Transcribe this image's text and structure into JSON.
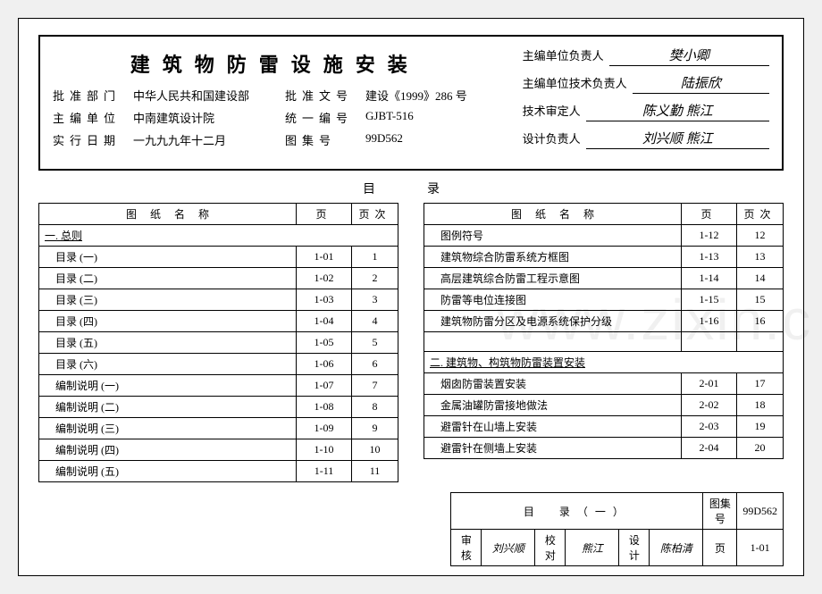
{
  "header": {
    "title": "建筑物防雷设施安装",
    "rows": [
      {
        "l1": "批准部门",
        "v1": "中华人民共和国建设部",
        "l2": "批准文号",
        "v2": "建设《1999》286 号"
      },
      {
        "l1": "主编单位",
        "v1": "中南建筑设计院",
        "l2": "统一编号",
        "v2": "GJBT-516"
      },
      {
        "l1": "实行日期",
        "v1": "一九九九年十二月",
        "l2": "图集号",
        "v2": "99D562"
      }
    ],
    "sigs": [
      {
        "label": "主编单位负责人",
        "sig": "樊小卿"
      },
      {
        "label": "主编单位技术负责人",
        "sig": "陆振欣"
      },
      {
        "label": "技术审定人",
        "sig": "陈义勤 熊江"
      },
      {
        "label": "设计负责人",
        "sig": "刘兴顺 熊江"
      }
    ]
  },
  "toc_title": "目　录",
  "left": {
    "headers": [
      "图 纸 名 称",
      "页",
      "页次"
    ],
    "rows": [
      {
        "type": "section",
        "name": "一. 总则"
      },
      {
        "type": "item",
        "name": "目录 (一)",
        "page": "1-01",
        "seq": "1"
      },
      {
        "type": "item",
        "name": "目录 (二)",
        "page": "1-02",
        "seq": "2"
      },
      {
        "type": "item",
        "name": "目录 (三)",
        "page": "1-03",
        "seq": "3"
      },
      {
        "type": "item",
        "name": "目录 (四)",
        "page": "1-04",
        "seq": "4"
      },
      {
        "type": "item",
        "name": "目录 (五)",
        "page": "1-05",
        "seq": "5"
      },
      {
        "type": "item",
        "name": "目录 (六)",
        "page": "1-06",
        "seq": "6"
      },
      {
        "type": "item",
        "name": "编制说明 (一)",
        "page": "1-07",
        "seq": "7"
      },
      {
        "type": "item",
        "name": "编制说明 (二)",
        "page": "1-08",
        "seq": "8"
      },
      {
        "type": "item",
        "name": "编制说明 (三)",
        "page": "1-09",
        "seq": "9"
      },
      {
        "type": "item",
        "name": "编制说明 (四)",
        "page": "1-10",
        "seq": "10"
      },
      {
        "type": "item",
        "name": "编制说明 (五)",
        "page": "1-11",
        "seq": "11"
      }
    ]
  },
  "right": {
    "headers": [
      "图 纸 名 称",
      "页",
      "页次"
    ],
    "rows": [
      {
        "type": "item",
        "name": "图例符号",
        "page": "1-12",
        "seq": "12"
      },
      {
        "type": "item",
        "name": "建筑物综合防雷系统方框图",
        "page": "1-13",
        "seq": "13"
      },
      {
        "type": "item",
        "name": "高层建筑综合防雷工程示意图",
        "page": "1-14",
        "seq": "14"
      },
      {
        "type": "item",
        "name": "防雷等电位连接图",
        "page": "1-15",
        "seq": "15"
      },
      {
        "type": "item",
        "name": "建筑物防雷分区及电源系统保护分级",
        "page": "1-16",
        "seq": "16"
      },
      {
        "type": "blank"
      },
      {
        "type": "section",
        "name": "二. 建筑物、构筑物防雷装置安装"
      },
      {
        "type": "item",
        "name": "烟囱防雷装置安装",
        "page": "2-01",
        "seq": "17"
      },
      {
        "type": "item",
        "name": "金属油罐防雷接地做法",
        "page": "2-02",
        "seq": "18"
      },
      {
        "type": "item",
        "name": "避雷针在山墙上安装",
        "page": "2-03",
        "seq": "19"
      },
      {
        "type": "item",
        "name": "避雷针在侧墙上安装",
        "page": "2-04",
        "seq": "20"
      }
    ]
  },
  "footer": {
    "title": "目　录（一）",
    "set_label": "图集号",
    "set_no": "99D562",
    "check_l": "审核",
    "check_v": "刘兴顺",
    "proof_l": "校对",
    "proof_v": "熊江",
    "design_l": "设计",
    "design_v": "陈柏清",
    "page_l": "页",
    "page_v": "1-01"
  },
  "watermark": "www.zixin.c"
}
